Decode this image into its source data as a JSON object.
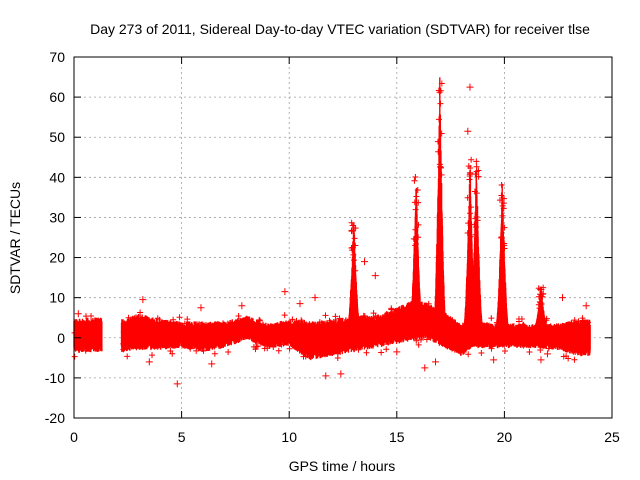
{
  "chart_data": {
    "type": "scatter",
    "title": "Day 273 of 2011, Sidereal Day-to-day VTEC variation (SDTVAR) for receiver tlse",
    "xlabel": "GPS time / hours",
    "ylabel": "SDTVAR / TECUs",
    "xlim": [
      0,
      25
    ],
    "ylim": [
      -20,
      70
    ],
    "x_ticks": [
      0,
      5,
      10,
      15,
      20,
      25
    ],
    "y_ticks": [
      -20,
      -10,
      0,
      10,
      20,
      30,
      40,
      50,
      60,
      70
    ],
    "x_tick_labels": [
      "0",
      "5",
      "10",
      "15",
      "20",
      "25"
    ],
    "y_tick_labels": [
      "-20",
      "-10",
      "0",
      "10",
      "20",
      "30",
      "40",
      "50",
      "60",
      "70"
    ],
    "grid": true,
    "marker": "+",
    "color": "#ff0000",
    "series": [
      {
        "name": "SDTVAR",
        "gaps": [
          [
            1.3,
            2.2
          ]
        ],
        "baseline_envelope": [
          [
            0.0,
            -2.0,
            3.0
          ],
          [
            0.6,
            -2.0,
            3.5
          ],
          [
            1.2,
            -2.0,
            3.5
          ],
          [
            2.3,
            -2.0,
            3.0
          ],
          [
            3.0,
            -1.5,
            4.5
          ],
          [
            4.0,
            -1.5,
            3.0
          ],
          [
            5.0,
            -1.0,
            2.5
          ],
          [
            6.0,
            -2.0,
            2.5
          ],
          [
            7.0,
            -1.0,
            2.5
          ],
          [
            8.0,
            1.0,
            4.0
          ],
          [
            9.0,
            -1.0,
            2.0
          ],
          [
            10.0,
            -0.5,
            3.0
          ],
          [
            11.0,
            -4.0,
            2.5
          ],
          [
            12.0,
            -3.0,
            3.0
          ],
          [
            13.0,
            -2.0,
            4.0
          ],
          [
            14.0,
            -1.0,
            4.0
          ],
          [
            15.0,
            0.0,
            6.0
          ],
          [
            15.8,
            1.0,
            8.0
          ],
          [
            16.5,
            1.0,
            7.0
          ],
          [
            17.2,
            -1.0,
            5.0
          ],
          [
            18.0,
            -3.0,
            2.0
          ],
          [
            18.5,
            -1.0,
            3.0
          ],
          [
            19.5,
            -1.0,
            2.0
          ],
          [
            20.5,
            -1.0,
            2.0
          ],
          [
            21.5,
            -1.0,
            2.0
          ],
          [
            22.5,
            -1.5,
            2.0
          ],
          [
            23.5,
            -3.0,
            3.0
          ],
          [
            24.0,
            -3.0,
            3.0
          ]
        ],
        "spikes": [
          {
            "x": 13.0,
            "peak": 30
          },
          {
            "x": 15.9,
            "peak": 41
          },
          {
            "x": 17.0,
            "peak": 65
          },
          {
            "x": 18.4,
            "peak": 45
          },
          {
            "x": 18.7,
            "peak": 44
          },
          {
            "x": 19.9,
            "peak": 40
          },
          {
            "x": 21.7,
            "peak": 13
          }
        ],
        "outliers": [
          [
            0.2,
            6
          ],
          [
            3.2,
            9.5
          ],
          [
            4.8,
            -11.5
          ],
          [
            6.4,
            -6.5
          ],
          [
            7.8,
            8
          ],
          [
            9.8,
            11.5
          ],
          [
            11.2,
            10
          ],
          [
            11.7,
            -9.5
          ],
          [
            12.4,
            -9
          ],
          [
            14.0,
            15.5
          ],
          [
            15.0,
            -3.5
          ],
          [
            16.3,
            -7.5
          ],
          [
            18.4,
            62.5
          ],
          [
            18.3,
            51.5
          ],
          [
            19.5,
            -5.5
          ],
          [
            21.7,
            -5.5
          ],
          [
            22.7,
            10
          ],
          [
            23.8,
            8
          ],
          [
            3.5,
            -6
          ],
          [
            5.9,
            7.5
          ],
          [
            10.5,
            8.5
          ],
          [
            13.5,
            19
          ],
          [
            16.8,
            -6
          ],
          [
            22.0,
            -4
          ]
        ]
      }
    ]
  }
}
